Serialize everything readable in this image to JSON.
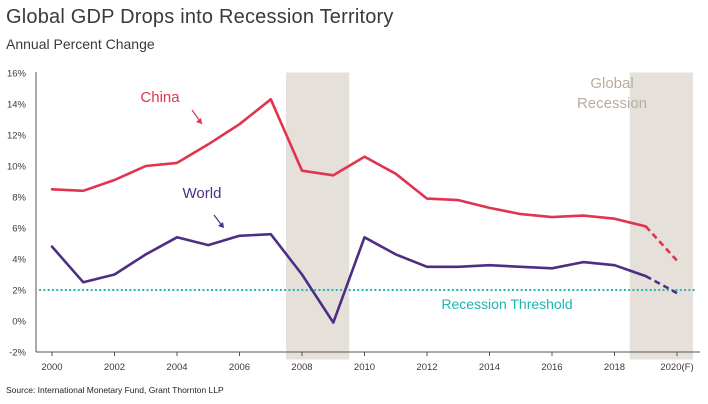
{
  "header": {
    "title": "Global GDP Drops into Recession Territory",
    "subtitle": "Annual Percent Change"
  },
  "footer": {
    "source": "Source: International Monetary Fund, Grant Thornton LLP"
  },
  "colors": {
    "china": "#e0344f",
    "world": "#4e2d84",
    "threshold": "#1fb5b0",
    "recession_band": "#e5e1da",
    "recession_text": "#b7aca0",
    "axis": "#555555"
  },
  "chart_data": {
    "type": "line",
    "x": [
      "2000",
      "2001",
      "2002",
      "2003",
      "2004",
      "2005",
      "2006",
      "2007",
      "2008",
      "2009",
      "2010",
      "2011",
      "2012",
      "2013",
      "2014",
      "2015",
      "2016",
      "2017",
      "2018",
      "2019",
      "2020(F)"
    ],
    "x_tick_labels": [
      "2000",
      "2002",
      "2004",
      "2006",
      "2008",
      "2010",
      "2012",
      "2014",
      "2016",
      "2018",
      "2020(F)"
    ],
    "y_tick_labels": [
      "-2%",
      "0%",
      "2%",
      "4%",
      "6%",
      "8%",
      "10%",
      "12%",
      "14%",
      "16%"
    ],
    "ylim": [
      -2,
      16
    ],
    "series": [
      {
        "name": "China",
        "values": [
          8.5,
          8.4,
          9.1,
          10.0,
          10.2,
          11.4,
          12.7,
          14.3,
          9.7,
          9.4,
          10.6,
          9.5,
          7.9,
          7.8,
          7.3,
          6.9,
          6.7,
          6.8,
          6.6,
          6.1,
          3.9
        ],
        "forecast_from_index": 19
      },
      {
        "name": "World",
        "values": [
          4.8,
          2.5,
          3.0,
          4.3,
          5.4,
          4.9,
          5.5,
          5.6,
          3.0,
          -0.1,
          5.4,
          4.3,
          3.5,
          3.5,
          3.6,
          3.5,
          3.4,
          3.8,
          3.6,
          2.9,
          1.8
        ],
        "forecast_from_index": 19
      }
    ],
    "threshold": {
      "label": "Recession Threshold",
      "value": 2.0
    },
    "recession_periods": [
      {
        "start": "2008",
        "end": "2009"
      },
      {
        "start": "2019",
        "end": "2020(F)"
      }
    ],
    "recession_label": [
      "Global",
      "Recession"
    ],
    "grid": false
  }
}
